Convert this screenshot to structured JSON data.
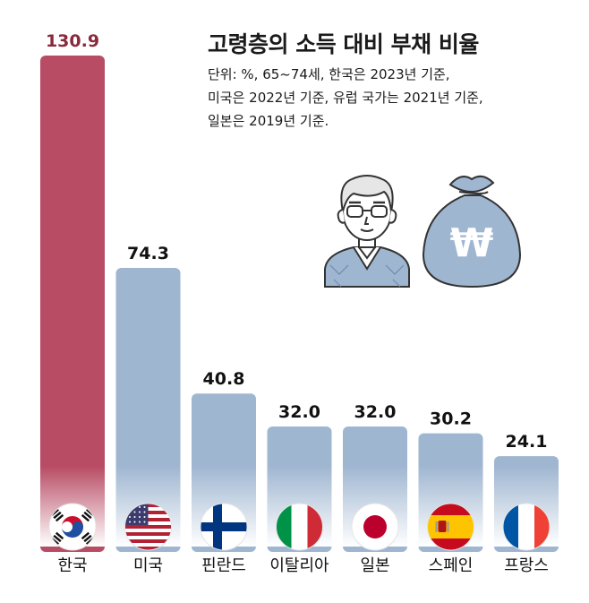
{
  "chart_data": {
    "type": "bar",
    "title": "고령층의 소득 대비 부채 비율",
    "subtitle": "단위: %, 65~74세, 한국은 2023년 기준,\n미국은 2022년 기준, 유럽 국가는 2021년 기준,\n일본은 2019년 기준.",
    "categories": [
      "한국",
      "미국",
      "핀란드",
      "이탈리아",
      "일본",
      "스페인",
      "프랑스"
    ],
    "values": [
      130.9,
      74.3,
      40.8,
      32.0,
      32.0,
      30.2,
      24.1
    ],
    "value_labels": [
      "130.9",
      "74.3",
      "40.8",
      "32.0",
      "32.0",
      "30.2",
      "24.1"
    ],
    "flags": [
      "korea-flag",
      "usa-flag",
      "finland-flag",
      "italy-flag",
      "japan-flag",
      "spain-flag",
      "france-flag"
    ],
    "ylim": [
      0,
      130.9
    ],
    "grid": false,
    "colors": {
      "highlight_bar": "#b84c64",
      "bar": "#9fb6d1",
      "highlight_label": "#8a2a3c",
      "label": "#111111"
    }
  },
  "illustration": {
    "icons": [
      "elderly-man-icon",
      "money-bag-icon"
    ],
    "currency_symbol": "₩"
  }
}
